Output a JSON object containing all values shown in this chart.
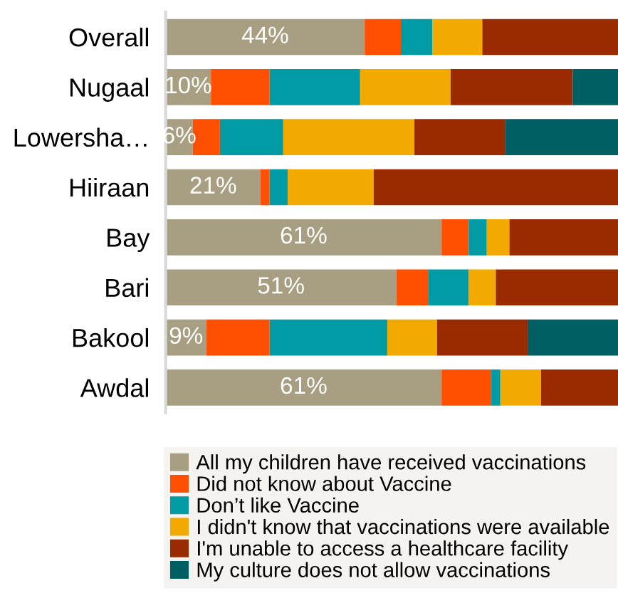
{
  "chart_data": {
    "type": "bar",
    "orientation": "horizontal",
    "stacked": true,
    "categories": [
      "Overall",
      "Nugaal",
      "Lowersha…",
      "Hiiraan",
      "Bay",
      "Bari",
      "Bakool",
      "Awdal"
    ],
    "xlim": [
      0,
      100
    ],
    "tick_labels": "y",
    "legend": "bottom",
    "grid": false,
    "series": [
      {
        "name": "All my children have received vaccinations",
        "color": "#a89f82",
        "values": [
          44,
          10,
          6,
          21,
          61,
          51,
          9,
          61
        ],
        "value_labels": [
          "44%",
          "10%",
          "6%",
          "21%",
          "61%",
          "51%",
          "9%",
          "61%"
        ]
      },
      {
        "name": "Did not know about Vaccine",
        "color": "#ff4f00",
        "values": [
          8,
          13,
          6,
          2,
          6,
          7,
          14,
          11
        ]
      },
      {
        "name": "Don’t like Vaccine",
        "color": "#009ba5",
        "values": [
          7,
          20,
          14,
          4,
          4,
          9,
          26,
          2
        ]
      },
      {
        "name": "I didn't know that vaccinations were available",
        "color": "#f2aa00",
        "values": [
          11,
          20,
          29,
          19,
          5,
          6,
          11,
          9
        ]
      },
      {
        "name": "I'm unable to access a healthcare facility",
        "color": "#9a2b00",
        "values": [
          30,
          27,
          20,
          54,
          24,
          27,
          20,
          17
        ]
      },
      {
        "name": "My culture does not allow vaccinations",
        "color": "#005f63",
        "values": [
          0,
          10,
          25,
          0,
          0,
          0,
          20,
          0
        ]
      }
    ]
  }
}
